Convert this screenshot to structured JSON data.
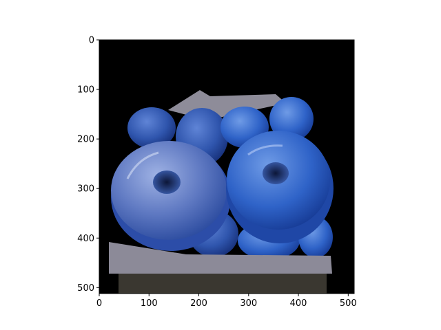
{
  "chart_data": {
    "type": "image",
    "title": "",
    "xlabel": "",
    "ylabel": "",
    "xlim": [
      0,
      512
    ],
    "ylim": [
      512,
      0
    ],
    "image_size": [
      512,
      512
    ],
    "xticks": [
      0,
      100,
      200,
      300,
      400,
      500
    ],
    "yticks": [
      0,
      100,
      200,
      300,
      400,
      500
    ],
    "grid": false,
    "legend": "none",
    "image_content": "photo of blue-glazed donuts in a box on a black background",
    "colors": {
      "background": "#000000",
      "glaze_light": "#6f86c8",
      "glaze_mid": "#3d63b8",
      "glaze_dark": "#1d3c8f",
      "box": "#8c8a98"
    }
  }
}
